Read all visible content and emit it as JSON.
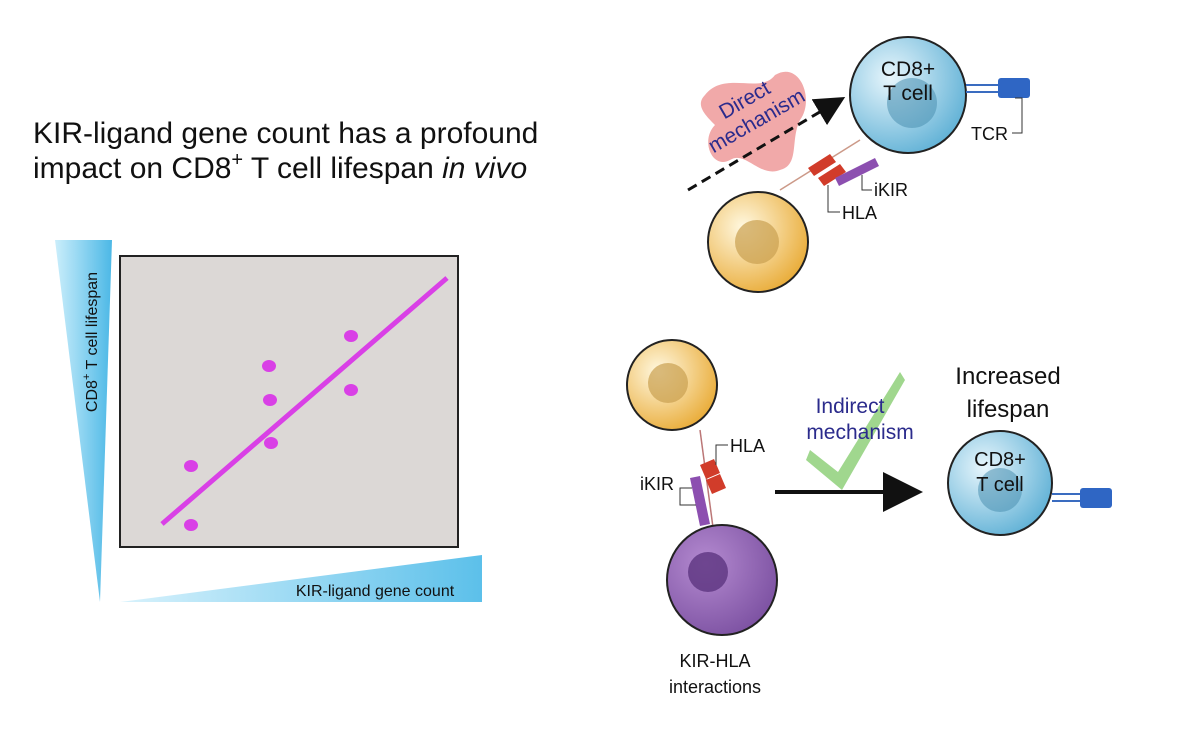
{
  "title": {
    "line1": "KIR-ligand gene count has a profound",
    "line2_a": "impact on CD8",
    "line2_sup": "+",
    "line2_b": " T cell lifespan ",
    "line2_italic": "in vivo"
  },
  "plot": {
    "y_label_a": "CD8",
    "y_label_sup": "+",
    "y_label_b": " T cell lifespan",
    "x_label": "KIR-ligand gene count"
  },
  "direct": {
    "cell_line1": "CD8+",
    "cell_line2": "T cell",
    "tcr": "TCR",
    "ikir": "iKIR",
    "hla": "HLA",
    "mechanism_line1": "Direct",
    "mechanism_line2": "mechanism"
  },
  "indirect": {
    "hla": "HLA",
    "ikir": "iKIR",
    "interaction_line1": "KIR-HLA",
    "interaction_line2": "interactions",
    "mechanism_line1": "Indirect",
    "mechanism_line2": "mechanism",
    "result_line1": "Increased",
    "result_line2": "lifespan",
    "cell_line1": "CD8+",
    "cell_line2": "T cell"
  }
}
